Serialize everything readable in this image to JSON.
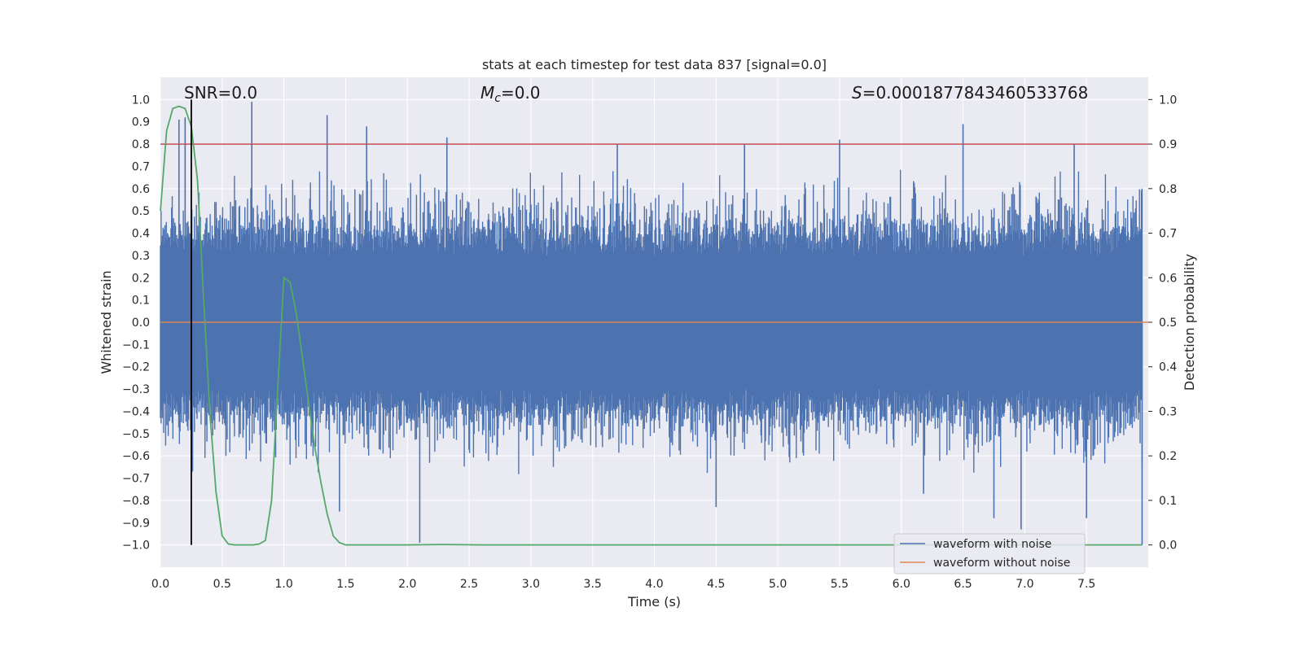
{
  "chart_data": {
    "type": "line",
    "title": "stats at each timestep for test data 837 [signal=0.0]",
    "xlabel": "Time (s)",
    "ylabel_left": "Whitened strain",
    "ylabel_right": "Detection probability",
    "xlim": [
      0.0,
      8.0
    ],
    "ylim_left": [
      -1.1,
      1.1
    ],
    "ylim_right": [
      -0.05,
      1.05
    ],
    "x_ticks": [
      "0.0",
      "0.5",
      "1.0",
      "1.5",
      "2.0",
      "2.5",
      "3.0",
      "3.5",
      "4.0",
      "4.5",
      "5.0",
      "5.5",
      "6.0",
      "6.5",
      "7.0",
      "7.5"
    ],
    "y_ticks_left": [
      "1.0",
      "0.9",
      "0.8",
      "0.7",
      "0.6",
      "0.5",
      "0.4",
      "0.3",
      "0.2",
      "0.1",
      "0.0",
      "−0.1",
      "−0.2",
      "−0.3",
      "−0.4",
      "−0.5",
      "−0.6",
      "−0.7",
      "−0.8",
      "−0.9",
      "−1.0"
    ],
    "y_ticks_right": [
      "1.0",
      "0.9",
      "0.8",
      "0.7",
      "0.6",
      "0.5",
      "0.4",
      "0.3",
      "0.2",
      "0.1",
      "0.0"
    ],
    "annotations": {
      "snr": "SNR=0.0",
      "mc_symbol": "M",
      "mc_subscript": "c",
      "mc_value": "=0.0",
      "s_symbol": "S",
      "s_value": "=0.0001877843460533768"
    },
    "series": [
      {
        "name": "waveform with noise",
        "color": "#4c72b0",
        "description": "whitened noisy strain, dense fluctuations mostly within ±0.45 with spikes up to ~0.98 and down to ~-0.99",
        "typical_amplitude": 0.3,
        "peaks": [
          [
            0.74,
            0.99
          ],
          [
            0.15,
            0.91
          ],
          [
            0.2,
            0.92
          ],
          [
            1.35,
            0.93
          ],
          [
            1.67,
            0.88
          ],
          [
            2.32,
            0.83
          ],
          [
            3.7,
            0.8
          ],
          [
            4.73,
            0.8
          ],
          [
            5.5,
            0.82
          ],
          [
            6.5,
            0.89
          ],
          [
            7.4,
            0.8
          ]
        ],
        "troughs": [
          [
            2.1,
            -0.99
          ],
          [
            0.26,
            -0.67
          ],
          [
            1.45,
            -0.85
          ],
          [
            4.5,
            -0.83
          ],
          [
            6.18,
            -0.77
          ],
          [
            6.75,
            -0.88
          ],
          [
            6.97,
            -0.93
          ],
          [
            7.5,
            -0.88
          ],
          [
            7.95,
            -1.0
          ]
        ]
      },
      {
        "name": "waveform without noise",
        "color": "#dd8452",
        "x": [
          0.0,
          8.0
        ],
        "y": [
          0.0,
          0.0
        ]
      },
      {
        "name": "detection probability",
        "color": "#55a868",
        "axis": "right",
        "x": [
          0.0,
          0.05,
          0.1,
          0.15,
          0.2,
          0.25,
          0.3,
          0.35,
          0.4,
          0.45,
          0.5,
          0.55,
          0.6,
          0.65,
          0.7,
          0.75,
          0.8,
          0.85,
          0.9,
          0.95,
          1.0,
          1.05,
          1.1,
          1.15,
          1.2,
          1.25,
          1.3,
          1.35,
          1.4,
          1.45,
          1.5,
          1.55,
          1.6,
          1.7,
          1.8,
          2.0,
          2.3,
          2.6,
          3.0,
          4.0,
          5.0,
          6.0,
          7.0,
          7.95
        ],
        "y": [
          0.75,
          0.93,
          0.98,
          0.985,
          0.98,
          0.94,
          0.82,
          0.55,
          0.3,
          0.12,
          0.02,
          0.002,
          0.0,
          0.0,
          0.0,
          0.0,
          0.002,
          0.01,
          0.1,
          0.35,
          0.6,
          0.59,
          0.52,
          0.42,
          0.32,
          0.22,
          0.14,
          0.07,
          0.02,
          0.005,
          0.0,
          0.0,
          0.0,
          0.0,
          0.0,
          0.0,
          0.001,
          0.0,
          0.0,
          0.0,
          0.0,
          0.0,
          0.0,
          0.0
        ]
      },
      {
        "name": "threshold",
        "color": "#c44e52",
        "axis": "right",
        "y": 0.9
      },
      {
        "name": "marker",
        "color": "#000000",
        "x": 0.25,
        "y_range": [
          -1.0,
          1.0
        ]
      }
    ],
    "legend": {
      "placement": "lower-right",
      "entries": [
        "waveform with noise",
        "waveform without noise"
      ]
    },
    "grid": true
  },
  "colors": {
    "plot_bg": "#eaeaf2",
    "grid": "#ffffff"
  }
}
